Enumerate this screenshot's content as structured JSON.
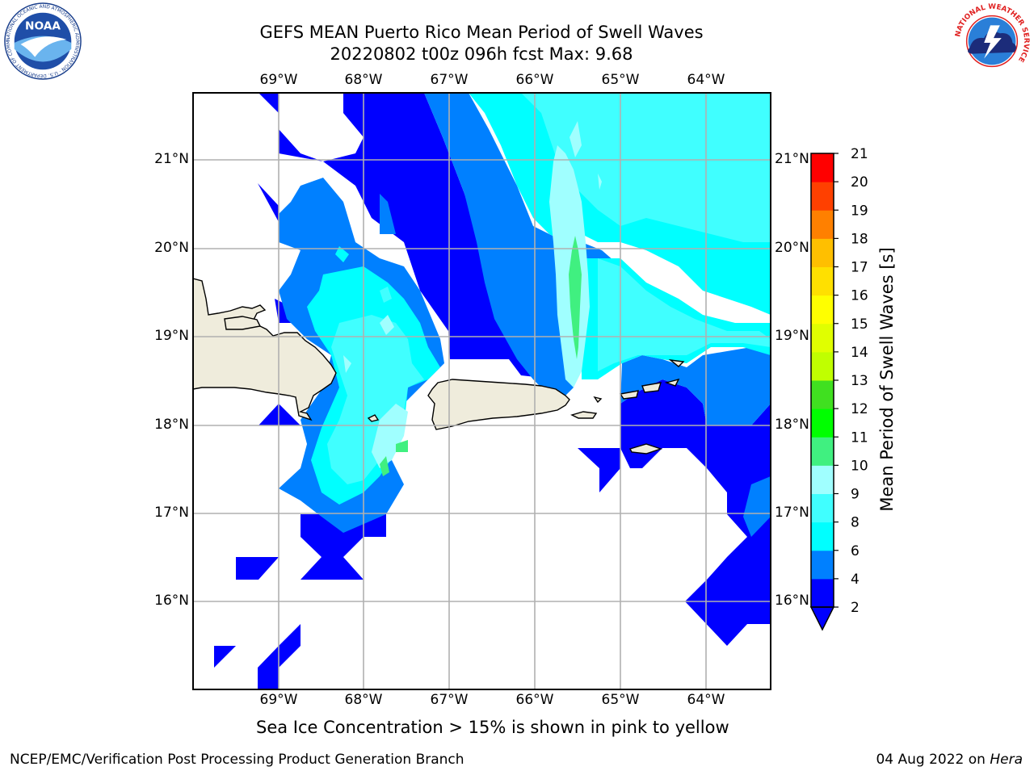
{
  "title": {
    "line1": "GEFS MEAN Puerto Rico Mean Period of Swell Waves",
    "line2": "20220802 t00z 096h fcst   Max: 9.68"
  },
  "map": {
    "lon_labels_top": [
      "69°W",
      "68°W",
      "67°W",
      "66°W",
      "65°W",
      "64°W"
    ],
    "lon_labels_bottom": [
      "69°W",
      "68°W",
      "67°W",
      "66°W",
      "65°W",
      "64°W"
    ],
    "lat_labels_left": [
      "21°N",
      "20°N",
      "19°N",
      "18°N",
      "17°N",
      "16°N"
    ],
    "lat_labels_right": [
      "21°N",
      "20°N",
      "19°N",
      "18°N",
      "17°N",
      "16°N"
    ],
    "land_color": "#efecdc",
    "gridline_color": "#b0b0b0",
    "islands": [
      "Hispaniola",
      "Puerto Rico",
      "Vieques",
      "Virgin Islands"
    ]
  },
  "colorbar": {
    "label": "Mean Period of Swell Waves [s]",
    "ticks": [
      "2",
      "4",
      "6",
      "8",
      "9",
      "10",
      "11",
      "12",
      "13",
      "14",
      "15",
      "16",
      "17",
      "18",
      "19",
      "20",
      "21"
    ],
    "colors": [
      "#0000ff",
      "#0080ff",
      "#00ffff",
      "#40ffff",
      "#a0ffff",
      "#40f080",
      "#00ff00",
      "#40e020",
      "#c0ff00",
      "#e0ff00",
      "#ffff00",
      "#ffe000",
      "#ffbf00",
      "#ff8000",
      "#ff4000",
      "#ff0000"
    ],
    "under_color": "#0000ff"
  },
  "subtitle": "Sea Ice Concentration > 15% is shown in pink to yellow",
  "footer": {
    "left": "NCEP/EMC/Verification Post Processing Product Generation Branch",
    "right_prefix": "04 Aug 2022 on ",
    "right_host": "Hera"
  },
  "logos": {
    "noaa_text": "NOAA",
    "noaa_ring": "NATIONAL OCEANIC AND ATMOSPHERIC ADMINISTRATION · U.S. DEPARTMENT OF COMMERCE",
    "nws_ring": "NATIONAL WEATHER SERVICE"
  }
}
